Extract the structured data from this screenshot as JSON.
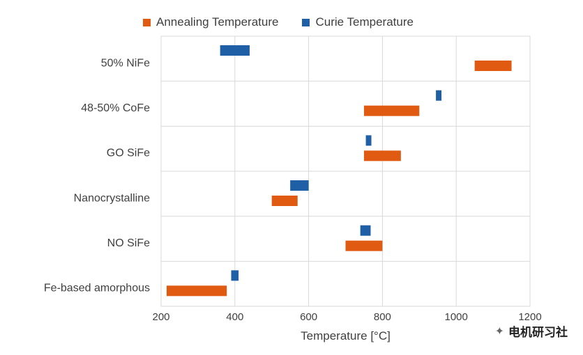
{
  "chart_data": {
    "type": "bar",
    "orientation": "horizontal-range",
    "title": "",
    "xlabel": "Temperature [°C]",
    "ylabel": "",
    "xlim": [
      200,
      1200
    ],
    "xticks": [
      200,
      400,
      600,
      800,
      1000,
      1200
    ],
    "grid": true,
    "legend_position": "top",
    "categories": [
      "50% NiFe",
      "48-50% CoFe",
      "GO SiFe",
      "Nanocrystalline",
      "NO SiFe",
      "Fe-based amorphous"
    ],
    "series": [
      {
        "name": "Annealing Temperature",
        "color": "#E05A12",
        "ranges": [
          [
            1050,
            1150
          ],
          [
            750,
            900
          ],
          [
            750,
            850
          ],
          [
            500,
            570
          ],
          [
            700,
            800
          ],
          [
            215,
            378
          ]
        ]
      },
      {
        "name": "Curie Temperature",
        "color": "#1F5FA6",
        "ranges": [
          [
            360,
            440
          ],
          [
            945,
            960
          ],
          [
            755,
            770
          ],
          [
            550,
            600
          ],
          [
            740,
            768
          ],
          [
            390,
            410
          ]
        ]
      }
    ]
  },
  "watermark": {
    "icon": "wechat-icon",
    "text": "电机研习社"
  }
}
